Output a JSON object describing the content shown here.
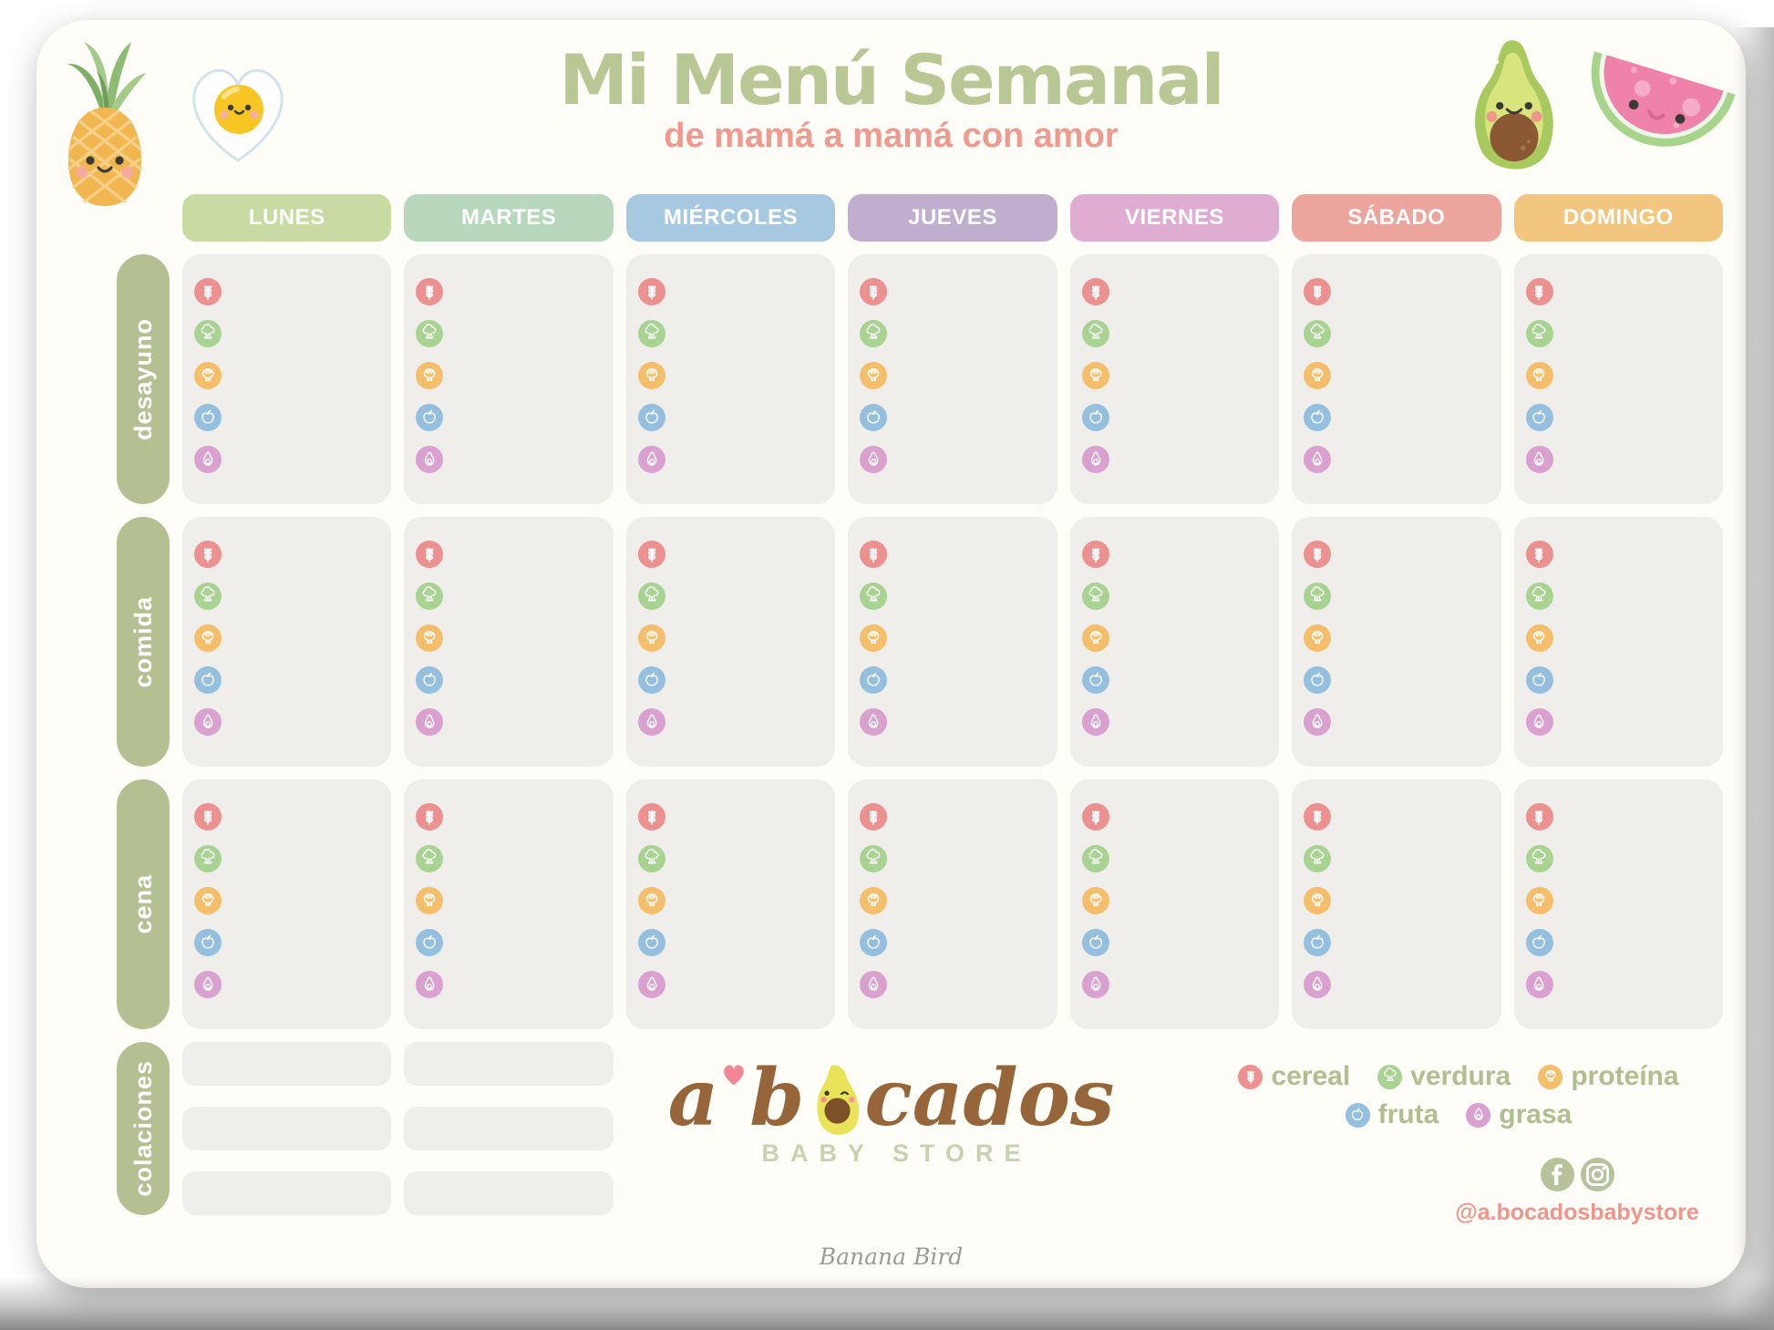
{
  "title": "Mi Menú Semanal",
  "subtitle": "de mamá a mamá con amor",
  "days": [
    {
      "key": "lunes",
      "label": "LUNES",
      "color": "#c7dba2"
    },
    {
      "key": "martes",
      "label": "MARTES",
      "color": "#b7d8bc"
    },
    {
      "key": "miercoles",
      "label": "MIÉRCOLES",
      "color": "#a6c9e1"
    },
    {
      "key": "jueves",
      "label": "JUEVES",
      "color": "#c0aecf"
    },
    {
      "key": "viernes",
      "label": "VIERNES",
      "color": "#dfadd2"
    },
    {
      "key": "sabado",
      "label": "SÁBADO",
      "color": "#eca59c"
    },
    {
      "key": "domingo",
      "label": "DOMINGO",
      "color": "#f2c67e"
    }
  ],
  "meal_rows": [
    {
      "key": "desayuno",
      "label": "desayuno"
    },
    {
      "key": "comida",
      "label": "comida"
    },
    {
      "key": "cena",
      "label": "cena"
    }
  ],
  "snack_row": {
    "key": "colaciones",
    "label": "colaciones",
    "columns_with_lines": 2,
    "lines_per_column": 3
  },
  "food_groups": [
    {
      "key": "cereal",
      "name": "cereal",
      "icon": "wheat-icon",
      "color": "#ec9090"
    },
    {
      "key": "verdura",
      "name": "verdura",
      "icon": "broccoli-icon",
      "color": "#a9d392"
    },
    {
      "key": "proteina",
      "name": "proteína",
      "icon": "meat-icon",
      "color": "#f5be6b"
    },
    {
      "key": "fruta",
      "name": "fruta",
      "icon": "apple-icon",
      "color": "#95bfdf"
    },
    {
      "key": "grasa",
      "name": "grasa",
      "icon": "avocado-icon",
      "color": "#d9a0d0"
    }
  ],
  "brand": {
    "logo_part1": "a",
    "logo_part2": "b",
    "logo_part3": "cados",
    "logo_sub": "BABY STORE",
    "social_handle": "@a.bocadosbabystore"
  },
  "footer": {
    "credit": "Banana Bird"
  },
  "decorations": [
    "pineapple-illustration",
    "fried-egg-illustration",
    "avocado-illustration",
    "watermelon-illustration"
  ],
  "colors": {
    "card_background": "#fffdf8",
    "cell_background": "#efeeeb",
    "row_pill_green": "#b4c092",
    "title_green": "#b9c795",
    "subtitle_salmon": "#f0998f",
    "legend_text_green": "#b1be90",
    "logo_brown": "#96663a",
    "social_icon_green": "#b7c29b"
  }
}
